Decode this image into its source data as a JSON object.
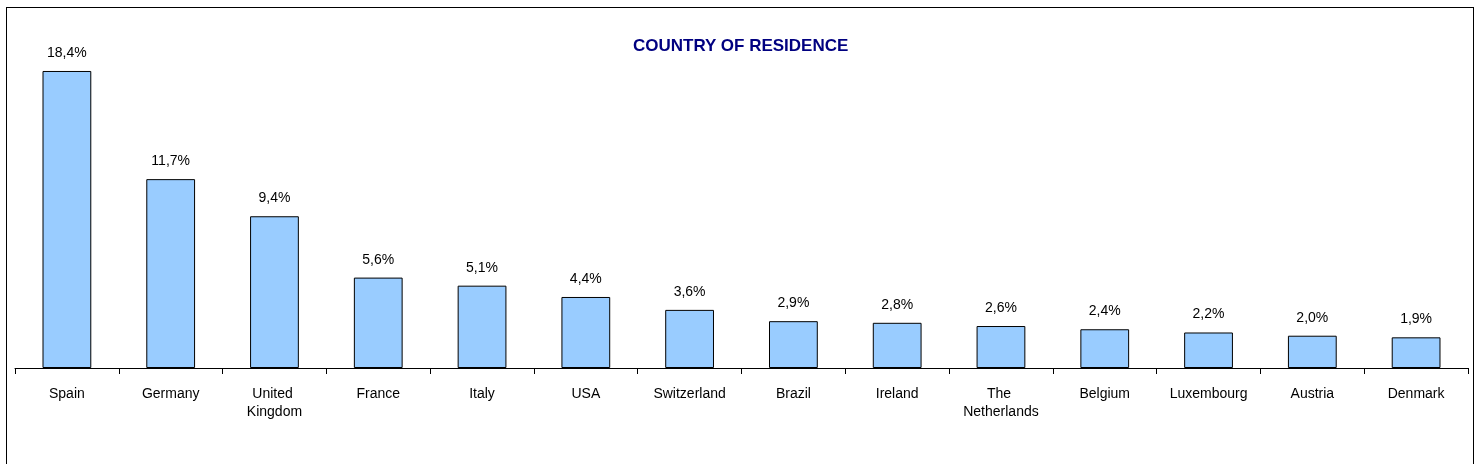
{
  "chart_data": {
    "type": "bar",
    "title": "COUNTRY OF RESIDENCE",
    "categories": [
      "Spain",
      "Germany",
      "United Kingdom",
      "France",
      "Italy",
      "USA",
      "Switzerland",
      "Brazil",
      "Ireland",
      "The Netherlands",
      "Belgium",
      "Luxembourg",
      "Austria",
      "Denmark"
    ],
    "values": [
      18.4,
      11.7,
      9.4,
      5.6,
      5.1,
      4.4,
      3.6,
      2.9,
      2.8,
      2.6,
      2.4,
      2.2,
      2.0,
      1.9
    ],
    "value_labels": [
      "18,4%",
      "11,7%",
      "9,4%",
      "5,6%",
      "5,1%",
      "4,4%",
      "3,6%",
      "2,9%",
      "2,8%",
      "2,6%",
      "2,4%",
      "2,2%",
      "2,0%",
      "1,9%"
    ],
    "color": "#99ccff"
  }
}
